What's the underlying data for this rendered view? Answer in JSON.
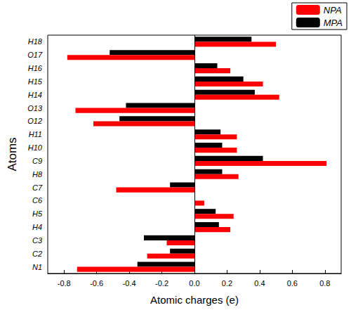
{
  "chart_data": {
    "type": "bar",
    "orientation": "horizontal",
    "categories": [
      "N1",
      "C2",
      "C3",
      "H4",
      "H5",
      "C6",
      "C7",
      "H8",
      "C9",
      "H10",
      "H11",
      "O12",
      "O13",
      "H14",
      "H15",
      "H16",
      "O17",
      "H18"
    ],
    "series": [
      {
        "name": "NPA",
        "color": "#ff0000",
        "values": [
          -0.72,
          -0.29,
          -0.17,
          0.22,
          0.24,
          0.06,
          -0.48,
          0.27,
          0.81,
          0.26,
          0.26,
          -0.62,
          -0.73,
          0.52,
          0.42,
          0.22,
          -0.78,
          0.5
        ]
      },
      {
        "name": "MPA",
        "color": "#000000",
        "values": [
          -0.35,
          -0.15,
          -0.31,
          0.15,
          0.13,
          0.0,
          -0.15,
          0.17,
          0.42,
          0.17,
          0.16,
          -0.46,
          -0.42,
          0.37,
          0.3,
          0.14,
          -0.52,
          0.35
        ]
      }
    ],
    "x_label": "Atomic charges (e)",
    "y_label": "Atoms",
    "xlim": [
      -0.9,
      0.9
    ],
    "xticks": [
      -0.8,
      -0.6,
      -0.4,
      -0.2,
      {
        "value": 0,
        "label": "0.0"
      },
      0.2,
      0.4,
      0.6,
      0.8
    ],
    "legend": "upper right",
    "grid": false
  }
}
